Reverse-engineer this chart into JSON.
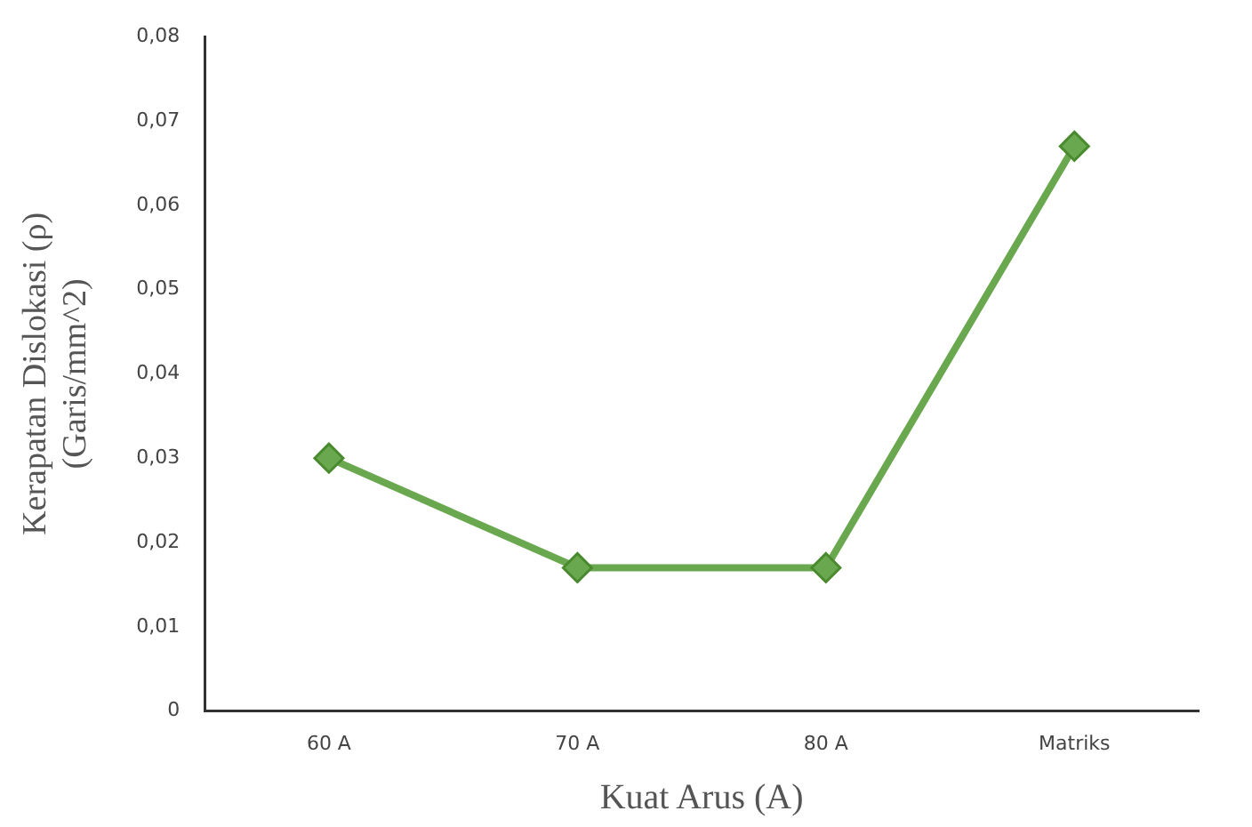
{
  "chart_data": {
    "type": "line",
    "xlabel": "Kuat Arus (A)",
    "ylabel": "Kerapatan Dislokasi (ρ)\n(Garis/mm^2)",
    "categories": [
      "60 A",
      "70 A",
      "80 A",
      "Matriks"
    ],
    "series": [
      {
        "color": "#6aa84f",
        "values": [
          0.03,
          0.017,
          0.017,
          0.067
        ]
      }
    ],
    "ylim": [
      0,
      0.08
    ],
    "yticks": [
      0,
      {
        "value": 0.01,
        "label": "0,01"
      },
      {
        "value": 0.02,
        "label": "0,02"
      },
      {
        "value": 0.03,
        "label": "0,03"
      },
      {
        "value": 0.04,
        "label": "0,04"
      },
      {
        "value": 0.05,
        "label": "0,05"
      },
      {
        "value": 0.06,
        "label": "0,06"
      },
      {
        "value": 0.07,
        "label": "0,07"
      },
      {
        "value": 0.08,
        "label": "0,08"
      }
    ],
    "grid": false,
    "legend": false,
    "marker": "diamond",
    "line_style": "solid"
  }
}
